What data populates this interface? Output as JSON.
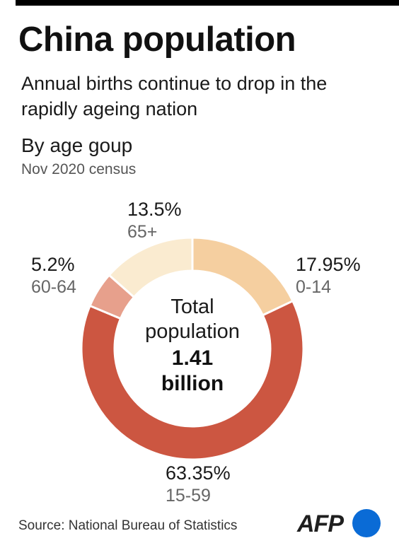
{
  "title": "China population",
  "subtitle": "Annual births continue to drop in the rapidly ageing nation",
  "chart_section": {
    "title": "By age goup",
    "subtitle": "Nov 2020 census"
  },
  "center_label": {
    "line1": "Total",
    "line2": "population",
    "line3": "1.41",
    "line4": "billion"
  },
  "chart_data": {
    "type": "pie",
    "donut": true,
    "start": "12 o'clock, clockwise",
    "slices": [
      {
        "category": "0-14",
        "value": 17.95,
        "label": "17.95%",
        "color": "#f5cfa0"
      },
      {
        "category": "15-59",
        "value": 63.35,
        "label": "63.35%",
        "color": "#cc5641"
      },
      {
        "category": "60-64",
        "value": 5.2,
        "label": "5.2%",
        "color": "#e7a08c"
      },
      {
        "category": "65+",
        "value": 13.5,
        "label": "13.5%",
        "color": "#faebd0"
      }
    ],
    "total": "1.41 billion",
    "legend": "none"
  },
  "source": "Source: National Bureau of Statistics",
  "logo": {
    "text": "AFP",
    "dot_color": "#0a6bd6"
  }
}
